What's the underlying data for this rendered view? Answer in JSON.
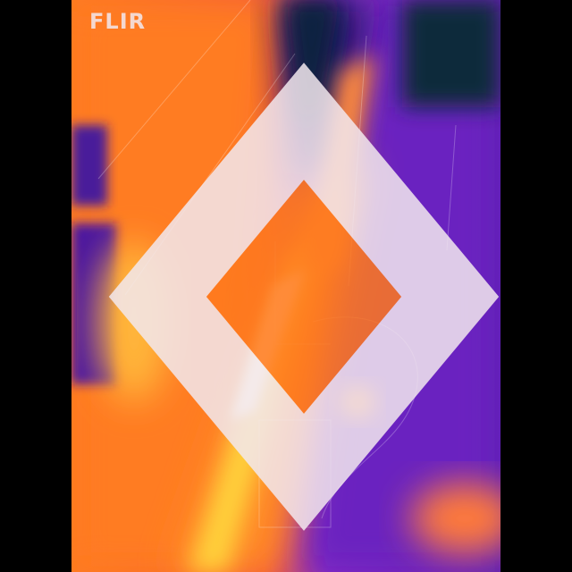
{
  "image": {
    "type": "thermal-camera-image",
    "palette": "iron",
    "palette_colors": {
      "cold": "#0b2a3a",
      "cool": "#3a0f8a",
      "mid": "#7a22c8",
      "warm": "#ff6a1a",
      "hot": "#ffd23a",
      "hottest": "#fff6d8"
    }
  },
  "logo": {
    "icon": "flir-logo-icon",
    "text": "FLIR"
  }
}
